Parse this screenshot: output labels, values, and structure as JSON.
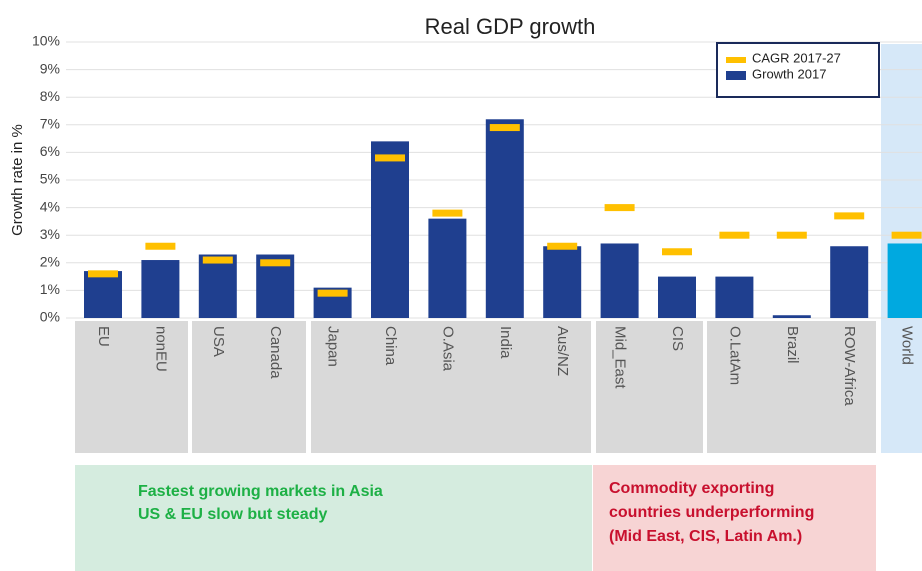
{
  "chart_data": {
    "type": "bar",
    "title": "Real GDP growth",
    "y_label": "Growth rate in %",
    "categories": [
      "EU",
      "nonEU",
      "USA",
      "Canada",
      "Japan",
      "China",
      "O.Asia",
      "India",
      "Aus/NZ",
      "Mid_East",
      "CIS",
      "O.LatAm",
      "Brazil",
      "ROW-Africa",
      "World"
    ],
    "series": [
      {
        "name": "Growth 2017",
        "color": "#1f3f8f",
        "colors": [
          "#1f3f8f",
          "#1f3f8f",
          "#1f3f8f",
          "#1f3f8f",
          "#1f3f8f",
          "#1f3f8f",
          "#1f3f8f",
          "#1f3f8f",
          "#1f3f8f",
          "#1f3f8f",
          "#1f3f8f",
          "#1f3f8f",
          "#1f3f8f",
          "#1f3f8f",
          "#00a9e0"
        ],
        "values": [
          1.7,
          2.1,
          2.3,
          2.3,
          1.1,
          6.4,
          3.6,
          7.2,
          2.6,
          2.7,
          1.5,
          1.5,
          0.1,
          2.6,
          2.7
        ]
      },
      {
        "name": "CAGR 2017-27",
        "color": "#ffc000",
        "marker": "dash",
        "values": [
          1.6,
          2.6,
          2.1,
          2.0,
          0.9,
          5.8,
          3.8,
          6.9,
          2.6,
          4.0,
          2.4,
          3.0,
          3.0,
          3.7,
          3.0
        ]
      }
    ],
    "ylim": [
      0,
      10
    ],
    "yticks": [
      {
        "value": 0,
        "label": "0%"
      },
      {
        "value": 1,
        "label": "1%"
      },
      {
        "value": 2,
        "label": "2%"
      },
      {
        "value": 3,
        "label": "3%"
      },
      {
        "value": 4,
        "label": "4%"
      },
      {
        "value": 5,
        "label": "5%"
      },
      {
        "value": 6,
        "label": "6%"
      },
      {
        "value": 7,
        "label": "7%"
      },
      {
        "value": 8,
        "label": "8%"
      },
      {
        "value": 9,
        "label": "9%"
      },
      {
        "value": 10,
        "label": "10%"
      }
    ],
    "grid": true,
    "legend": "top-right",
    "annotations": [
      {
        "color": "#1db045",
        "lines": [
          "Fastest growing markets in Asia",
          "US & EU slow but steady"
        ]
      },
      {
        "color": "#c8102e",
        "lines": [
          "Commodity exporting",
          "countries underperforming",
          "(Mid East, CIS, Latin Am.)"
        ]
      }
    ]
  }
}
